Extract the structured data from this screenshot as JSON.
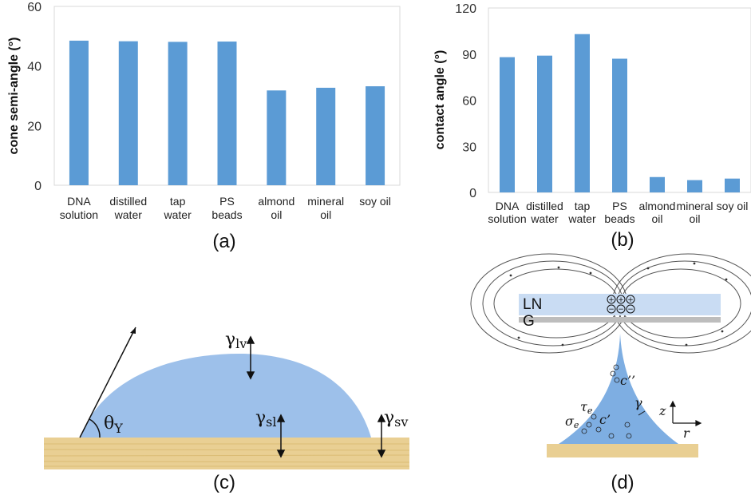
{
  "chart_data": [
    {
      "panel_label": "(a)",
      "type": "bar",
      "ylabel": "cone semi-angle (°)",
      "ylim": [
        0,
        60
      ],
      "yticks": [
        0,
        20,
        40,
        60
      ],
      "grid": false,
      "color": "#5b9bd5",
      "categories": [
        [
          "DNA",
          "solution"
        ],
        [
          "distilled",
          "water"
        ],
        [
          "tap",
          "water"
        ],
        [
          "PS",
          "beads"
        ],
        [
          "almond",
          "oil"
        ],
        [
          "mineral",
          "oil"
        ],
        [
          "soy oil"
        ]
      ],
      "values": [
        48.5,
        48.3,
        48.1,
        48.2,
        31.8,
        32.7,
        33.2
      ]
    },
    {
      "panel_label": "(b)",
      "type": "bar",
      "ylabel": "contact angle (°)",
      "ylim": [
        0,
        120
      ],
      "yticks": [
        0,
        30,
        60,
        90,
        120
      ],
      "grid": false,
      "color": "#5b9bd5",
      "categories": [
        [
          "DNA",
          "solution"
        ],
        [
          "distilled",
          "water"
        ],
        [
          "tap",
          "water"
        ],
        [
          "PS",
          "beads"
        ],
        [
          "almond",
          "oil"
        ],
        [
          "mineral",
          "oil"
        ],
        [
          "soy oil"
        ]
      ],
      "values": [
        88,
        89,
        103,
        87,
        10,
        8,
        9
      ]
    }
  ],
  "diagram_c": {
    "panel_label": "(c)",
    "gamma_lv": "γ",
    "gamma_lv_sub": "lv",
    "gamma_sl": "γ",
    "gamma_sl_sub": "sl",
    "gamma_sv": "γ",
    "gamma_sv_sub": "sv",
    "theta": "θ",
    "theta_sub": "Y",
    "droplet_color": "#9dc0ea",
    "substrate_color": "#e9cf93"
  },
  "diagram_d": {
    "panel_label": "(d)",
    "ln_label": "LN",
    "g_label": "G",
    "c_double_prime": "c’’",
    "c_prime": "c’",
    "tau": "τ",
    "tau_sub": "e",
    "sigma": "σ",
    "sigma_sub": "e",
    "gamma": "γ",
    "axis_z": "z",
    "axis_r": "r",
    "plus_sign": "+",
    "minus_sign": "−",
    "cone_color": "#7eaee2",
    "ln_color": "#c9dcf3",
    "g_color": "#bdbdbd"
  }
}
